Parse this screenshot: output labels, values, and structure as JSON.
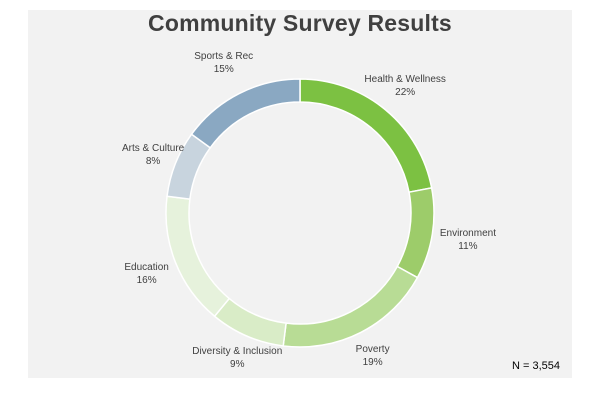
{
  "chart_data": {
    "type": "pie",
    "variant": "donut",
    "title": "Community Survey Results",
    "categories": [
      "Health & Wellness",
      "Environment",
      "Poverty",
      "Diversity & Inclusion",
      "Education",
      "Arts & Culture",
      "Sports & Rec"
    ],
    "values": [
      22,
      11,
      19,
      9,
      16,
      8,
      15
    ],
    "value_labels": [
      "22%",
      "11%",
      "19%",
      "9%",
      "16%",
      "8%",
      "15%"
    ],
    "colors": [
      "#7cc142",
      "#9dcc6a",
      "#b8dc95",
      "#d9ecc7",
      "#e6f2dc",
      "#c8d4de",
      "#8aa8c2"
    ],
    "legend": "none",
    "grid": false
  },
  "footer": {
    "n_label": "N = 3,554"
  }
}
